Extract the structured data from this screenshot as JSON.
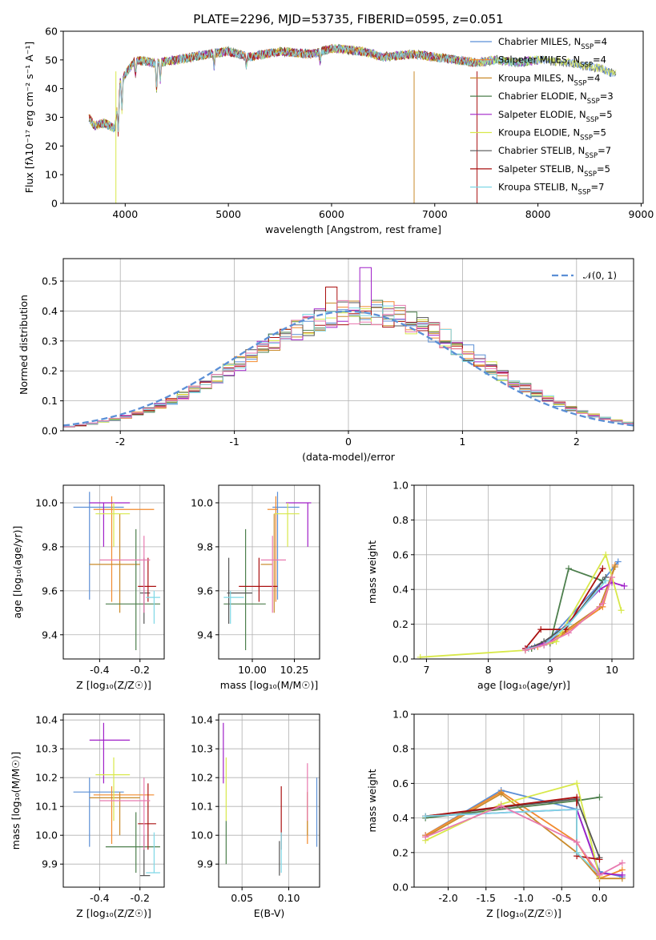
{
  "title": "PLATE=2296, MJD=53735, FIBERID=0595, z=0.051",
  "colors": {
    "Chabrier MILES": "#5b8fd6",
    "Salpeter MILES": "#f28a2d",
    "Kroupa MILES": "#c98a2a",
    "Chabrier ELODIE": "#4d7f4d",
    "Salpeter ELODIE": "#a020c8",
    "Kroupa ELODIE": "#d8e84a",
    "Chabrier STELIB": "#555555",
    "Salpeter STELIB": "#aa1010",
    "Kroupa STELIB": "#7fd8e6",
    "extra": "#e87ab0"
  },
  "chart_data": [
    {
      "type": "line",
      "id": "spectrum",
      "title": "PLATE=2296, MJD=53735, FIBERID=0595, z=0.051",
      "xlabel": "wavelength [Angstrom, rest frame]",
      "ylabel": "Flux [fλ10⁻¹⁷ erg cm⁻² s⁻¹ A⁻¹]",
      "xlim": [
        3400,
        9020
      ],
      "ylim": [
        0,
        60
      ],
      "xticks": [
        4000,
        5000,
        6000,
        7000,
        8000,
        9000
      ],
      "yticks": [
        0,
        10,
        20,
        30,
        40,
        50,
        60
      ],
      "legend_position": "top-right",
      "series": [
        {
          "name": "Chabrier MILES, N_SSP=4",
          "ssp": "4"
        },
        {
          "name": "Salpeter MILES, N_SSP=4",
          "ssp": "4"
        },
        {
          "name": "Kroupa MILES, N_SSP=4",
          "ssp": "4"
        },
        {
          "name": "Chabrier ELODIE, N_SSP=3",
          "ssp": "3"
        },
        {
          "name": "Salpeter ELODIE, N_SSP=5",
          "ssp": "5"
        },
        {
          "name": "Kroupa ELODIE, N_SSP=5",
          "ssp": "5"
        },
        {
          "name": "Chabrier STELIB, N_SSP=7",
          "ssp": "7"
        },
        {
          "name": "Salpeter STELIB, N_SSP=5",
          "ssp": "5"
        },
        {
          "name": "Kroupa STELIB, N_SSP=7",
          "ssp": "7"
        }
      ],
      "continuum": [
        [
          3650,
          30
        ],
        [
          3700,
          27
        ],
        [
          3800,
          28
        ],
        [
          3900,
          26
        ],
        [
          3950,
          42
        ],
        [
          4000,
          45
        ],
        [
          4100,
          50
        ],
        [
          4300,
          49
        ],
        [
          4500,
          50
        ],
        [
          4800,
          52
        ],
        [
          5000,
          53
        ],
        [
          5200,
          51
        ],
        [
          5500,
          53
        ],
        [
          5800,
          52
        ],
        [
          6000,
          54
        ],
        [
          6300,
          53
        ],
        [
          6500,
          51
        ],
        [
          6800,
          52
        ],
        [
          7000,
          51
        ],
        [
          7400,
          49
        ],
        [
          7600,
          50
        ],
        [
          7800,
          49
        ],
        [
          8000,
          50
        ],
        [
          8300,
          49
        ],
        [
          8600,
          47
        ],
        [
          8760,
          45
        ]
      ]
    },
    {
      "type": "bar",
      "id": "residuals",
      "xlabel": "(data-model)/error",
      "ylabel": "Normed distribution",
      "xlim": [
        -2.5,
        2.5
      ],
      "ylim": [
        0,
        0.575
      ],
      "xticks": [
        -2,
        -1,
        0,
        1,
        2
      ],
      "yticks": [
        0.0,
        0.1,
        0.2,
        0.3,
        0.4,
        0.5
      ],
      "legend": "𝒩(0, 1)",
      "legend_position": "top-right",
      "bin_width": 0.1,
      "gaussian": {
        "mean": 0,
        "sigma": 1
      }
    },
    {
      "type": "scatter",
      "id": "age_vs_Z",
      "xlabel": "Z [log₁₀(Z/Z☉)]",
      "ylabel": "age  [log₁₀(age/yr)]",
      "xlim": [
        -0.58,
        -0.08
      ],
      "ylim": [
        9.29,
        10.08
      ],
      "xticks": [
        -0.4,
        -0.2
      ],
      "yticks": [
        9.4,
        9.6,
        9.8,
        10.0
      ]
    },
    {
      "type": "scatter",
      "id": "age_vs_mass",
      "xlabel": "mass [log₁₀(M/M☉)]",
      "ylabel": "",
      "xlim": [
        9.8,
        10.4
      ],
      "ylim": [
        9.29,
        10.08
      ],
      "xticks": [
        10.0,
        10.25
      ],
      "yticks": [
        9.4,
        9.6,
        9.8,
        10.0
      ]
    },
    {
      "type": "line",
      "id": "weight_vs_age",
      "xlabel": "age  [log₁₀(age/yr)]",
      "ylabel": "mass weight",
      "xlim": [
        6.8,
        10.35
      ],
      "ylim": [
        0.0,
        1.0
      ],
      "xticks": [
        7,
        8,
        9,
        10
      ],
      "yticks": [
        0.0,
        0.2,
        0.4,
        0.6,
        0.8,
        1.0
      ]
    },
    {
      "type": "scatter",
      "id": "mass_vs_Z",
      "xlabel": "Z [log₁₀(Z/Z☉)]",
      "ylabel": "mass [log₁₀(M/M☉)]",
      "xlim": [
        -0.58,
        -0.08
      ],
      "ylim": [
        9.82,
        10.42
      ],
      "xticks": [
        -0.4,
        -0.2
      ],
      "yticks": [
        9.9,
        10.0,
        10.1,
        10.2,
        10.3,
        10.4
      ]
    },
    {
      "type": "scatter",
      "id": "mass_vs_ebv",
      "xlabel": "E(B-V)",
      "ylabel": "",
      "xlim": [
        0.025,
        0.133
      ],
      "ylim": [
        9.82,
        10.42
      ],
      "xticks": [
        0.05,
        0.1
      ],
      "yticks": [
        9.9,
        10.0,
        10.1,
        10.2,
        10.3,
        10.4
      ]
    },
    {
      "type": "line",
      "id": "weight_vs_Z",
      "xlabel": "Z [log₁₀(Z/Z☉)]",
      "ylabel": "mass weight",
      "xlim": [
        -2.45,
        0.45
      ],
      "ylim": [
        0.0,
        1.0
      ],
      "xticks": [
        -2.0,
        -1.5,
        -1.0,
        -0.5,
        0.0
      ],
      "yticks": [
        0.0,
        0.2,
        0.4,
        0.6,
        0.8,
        1.0
      ]
    }
  ],
  "models": [
    {
      "color": "#5b8fd6",
      "Z": [
        -0.53,
        -0.28
      ],
      "Zc": -0.45,
      "age": [
        9.56,
        10.05
      ],
      "agec": 9.98,
      "mass": [
        9.96,
        10.2
      ],
      "massc": 10.15,
      "massr": [
        9.96,
        10.2
      ],
      "ebv": 0.13,
      "ebvr": [
        9.96,
        10.2
      ],
      "massx": [
        10.17,
        10.28
      ],
      "agey": 9.98,
      "aw": [
        [
          8.6,
          0.05
        ],
        [
          8.75,
          0.07
        ],
        [
          8.9,
          0.08
        ],
        [
          9.85,
          0.45
        ],
        [
          10.1,
          0.56
        ]
      ],
      "zw": [
        [
          -2.3,
          0.3
        ],
        [
          -1.3,
          0.56
        ],
        [
          -0.3,
          0.45
        ],
        [
          0.0,
          0.09
        ],
        [
          0.3,
          0.06
        ]
      ]
    },
    {
      "color": "#f28a2d",
      "Z": [
        -0.43,
        -0.13
      ],
      "Zc": -0.34,
      "age": [
        9.55,
        10.03
      ],
      "agec": 9.97,
      "mass": [
        9.97,
        10.17
      ],
      "massc": 10.14,
      "ebv": 0.12,
      "ebvr": [
        9.97,
        10.15
      ],
      "massx": [
        10.14,
        10.15
      ],
      "agey": 9.97,
      "aw": [
        [
          8.6,
          0.05
        ],
        [
          8.8,
          0.07
        ],
        [
          9.0,
          0.09
        ],
        [
          9.85,
          0.3
        ],
        [
          10.05,
          0.54
        ]
      ],
      "zw": [
        [
          -2.3,
          0.3
        ],
        [
          -1.3,
          0.55
        ],
        [
          -0.3,
          0.26
        ],
        [
          0.0,
          0.05
        ],
        [
          0.3,
          0.1
        ]
      ]
    },
    {
      "color": "#c98a2a",
      "Z": [
        -0.45,
        -0.2
      ],
      "Zc": -0.3,
      "age": [
        9.5,
        9.95
      ],
      "agec": 9.72,
      "mass": [
        10.0,
        10.15
      ],
      "massc": 10.13,
      "ebv": 0.12,
      "ebvr": [
        10.0,
        10.15
      ],
      "massx": [
        10.1,
        10.12
      ],
      "agey": 9.72,
      "aw": [
        [
          8.7,
          0.06
        ],
        [
          8.9,
          0.08
        ],
        [
          9.2,
          0.15
        ],
        [
          9.8,
          0.3
        ],
        [
          10.05,
          0.53
        ]
      ],
      "zw": [
        [
          -2.3,
          0.29
        ],
        [
          -1.3,
          0.54
        ],
        [
          -0.3,
          0.2
        ],
        [
          0.0,
          0.05
        ],
        [
          0.3,
          0.05
        ]
      ]
    },
    {
      "color": "#4d7f4d",
      "Z": [
        -0.37,
        -0.1
      ],
      "Zc": -0.22,
      "age": [
        9.33,
        9.88
      ],
      "agec": 9.54,
      "mass": [
        9.87,
        10.08
      ],
      "massc": 9.96,
      "ebv": 0.033,
      "ebvr": [
        9.9,
        10.05
      ],
      "massx": [
        9.88,
        10.08
      ],
      "agey": 9.54,
      "aw": [
        [
          8.7,
          0.06
        ],
        [
          9.0,
          0.09
        ],
        [
          9.3,
          0.52
        ],
        [
          9.85,
          0.45
        ]
      ],
      "zw": [
        [
          -2.3,
          0.4
        ],
        [
          -0.3,
          0.5
        ],
        [
          0.0,
          0.52
        ]
      ]
    },
    {
      "color": "#a020c8",
      "Z": [
        -0.45,
        -0.25
      ],
      "Zc": -0.38,
      "age": [
        9.8,
        10.0
      ],
      "agec": 10.0,
      "mass": [
        10.18,
        10.39
      ],
      "massc": 10.33,
      "ebv": 0.03,
      "ebvr": [
        10.18,
        10.39
      ],
      "massx": [
        10.25,
        10.35
      ],
      "agey": 10.0,
      "aw": [
        [
          8.6,
          0.06
        ],
        [
          9.0,
          0.1
        ],
        [
          9.8,
          0.4
        ],
        [
          10.0,
          0.44
        ],
        [
          10.2,
          0.42
        ]
      ],
      "zw": [
        [
          -2.3,
          0.41
        ],
        [
          -0.3,
          0.45
        ],
        [
          0.0,
          0.08
        ],
        [
          0.3,
          0.07
        ]
      ]
    },
    {
      "color": "#d8e84a",
      "Z": [
        -0.42,
        -0.25
      ],
      "Zc": -0.33,
      "age": [
        9.8,
        10.0
      ],
      "agec": 9.95,
      "mass": [
        10.05,
        10.27
      ],
      "massc": 10.21,
      "ebv": 0.033,
      "ebvr": [
        10.05,
        10.27
      ],
      "massx": [
        10.18,
        10.28
      ],
      "agey": 9.95,
      "aw": [
        [
          6.9,
          0.01
        ],
        [
          8.6,
          0.05
        ],
        [
          9.1,
          0.1
        ],
        [
          9.9,
          0.6
        ],
        [
          10.15,
          0.28
        ]
      ],
      "zw": [
        [
          -2.3,
          0.27
        ],
        [
          -1.3,
          0.48
        ],
        [
          -0.3,
          0.6
        ],
        [
          0.0,
          0.06
        ]
      ]
    },
    {
      "color": "#555555",
      "Z": [
        -0.2,
        -0.15
      ],
      "Zc": -0.18,
      "age": [
        9.45,
        9.75
      ],
      "agec": 9.59,
      "mass": [
        9.86,
        10.0
      ],
      "massc": 9.86,
      "ebv": 0.09,
      "ebvr": [
        9.86,
        9.98
      ],
      "massx": [
        9.9,
        10.0
      ],
      "agey": 9.59,
      "aw": [
        [
          8.65,
          0.06
        ],
        [
          8.9,
          0.1
        ],
        [
          9.3,
          0.2
        ],
        [
          9.9,
          0.47
        ]
      ],
      "zw": [
        [
          -2.3,
          0.41
        ],
        [
          -0.3,
          0.51
        ],
        [
          0.0,
          0.17
        ]
      ]
    },
    {
      "color": "#aa1010",
      "Z": [
        -0.21,
        -0.12
      ],
      "Zc": -0.16,
      "age": [
        9.55,
        9.75
      ],
      "agec": 9.62,
      "mass": [
        9.95,
        10.18
      ],
      "massc": 10.04,
      "ebv": 0.092,
      "ebvr": [
        9.95,
        10.17
      ],
      "massx": [
        9.97,
        10.15
      ],
      "agey": 9.62,
      "aw": [
        [
          8.6,
          0.06
        ],
        [
          8.85,
          0.17
        ],
        [
          9.25,
          0.17
        ],
        [
          9.85,
          0.52
        ]
      ],
      "zw": [
        [
          -2.3,
          0.41
        ],
        [
          -0.3,
          0.52
        ],
        [
          -0.3,
          0.18
        ],
        [
          0.0,
          0.16
        ]
      ]
    },
    {
      "color": "#7fd8e6",
      "Z": [
        -0.17,
        -0.1
      ],
      "Zc": -0.13,
      "age": [
        9.45,
        9.6
      ],
      "agec": 9.57,
      "mass": [
        9.87,
        10.01
      ],
      "massc": 9.87,
      "ebv": 0.092,
      "ebvr": [
        9.87,
        10.01
      ],
      "massx": [
        9.88,
        9.95
      ],
      "agey": 9.57,
      "aw": [
        [
          8.65,
          0.06
        ],
        [
          8.9,
          0.08
        ],
        [
          9.3,
          0.2
        ],
        [
          9.9,
          0.45
        ]
      ],
      "zw": [
        [
          -2.3,
          0.41
        ],
        [
          -0.3,
          0.45
        ],
        [
          -0.3,
          0.2
        ],
        [
          0.0,
          0.07
        ]
      ]
    },
    {
      "color": "#e87ab0",
      "Z": [
        -0.4,
        -0.15
      ],
      "Zc": -0.18,
      "age": [
        9.5,
        9.85
      ],
      "agec": 9.74,
      "mass": [
        9.95,
        10.2
      ],
      "massc": 10.12,
      "ebv": 0.12,
      "ebvr": [
        10.05,
        10.25
      ],
      "massx": [
        10.1,
        10.2
      ],
      "agey": 9.74,
      "aw": [
        [
          8.6,
          0.05
        ],
        [
          8.9,
          0.08
        ],
        [
          9.3,
          0.15
        ],
        [
          9.85,
          0.32
        ],
        [
          10.0,
          0.47
        ]
      ],
      "zw": [
        [
          -2.3,
          0.29
        ],
        [
          -1.3,
          0.47
        ],
        [
          -0.3,
          0.26
        ],
        [
          0.0,
          0.07
        ],
        [
          0.3,
          0.14
        ]
      ]
    }
  ]
}
